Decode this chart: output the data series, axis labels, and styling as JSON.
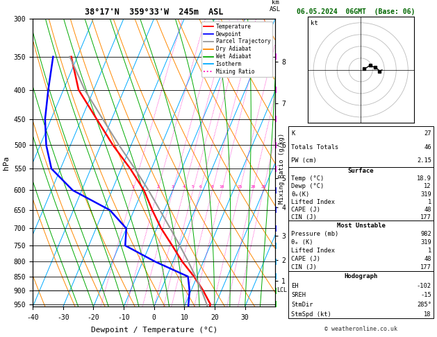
{
  "title_left": "38°17'N  359°33'W  245m  ASL",
  "title_right": "06.05.2024  06GMT  (Base: 06)",
  "xlabel": "Dewpoint / Temperature (°C)",
  "p_min": 300,
  "p_max": 960,
  "xlim": [
    -40,
    40
  ],
  "xticks": [
    -40,
    -30,
    -20,
    -10,
    0,
    10,
    20,
    30
  ],
  "pressure_levels": [
    300,
    350,
    400,
    450,
    500,
    550,
    600,
    650,
    700,
    750,
    800,
    850,
    900,
    950
  ],
  "temp_profile": {
    "temps": [
      18.9,
      18.2,
      14.0,
      9.0,
      3.0,
      -2.5,
      -8.5,
      -14.0,
      -19.5,
      -27.0,
      -36.0,
      -45.0,
      -55.0,
      -62.0
    ],
    "pressures": [
      982,
      950,
      900,
      850,
      800,
      750,
      700,
      650,
      600,
      550,
      500,
      450,
      400,
      350
    ],
    "color": "#ff0000",
    "linewidth": 1.8
  },
  "dewp_profile": {
    "temps": [
      12.0,
      11.0,
      9.5,
      7.0,
      -6.0,
      -18.0,
      -20.0,
      -28.0,
      -43.0,
      -53.0,
      -58.0,
      -62.0,
      -65.0,
      -68.0
    ],
    "pressures": [
      982,
      950,
      900,
      850,
      800,
      750,
      700,
      650,
      600,
      550,
      500,
      450,
      400,
      350
    ],
    "color": "#0000ff",
    "linewidth": 1.8
  },
  "parcel_profile": {
    "temps": [
      18.9,
      17.0,
      13.5,
      9.5,
      5.0,
      0.0,
      -5.5,
      -11.5,
      -18.0,
      -25.5,
      -34.0,
      -43.0,
      -53.0,
      -62.5
    ],
    "pressures": [
      982,
      950,
      900,
      850,
      800,
      750,
      700,
      650,
      600,
      550,
      500,
      450,
      400,
      350
    ],
    "color": "#999999",
    "linewidth": 1.5
  },
  "lcl_pressure": 897,
  "background_color": "#ffffff",
  "isotherm_color": "#00aaff",
  "isotherm_lw": 0.7,
  "isotherm_temps": [
    -60,
    -50,
    -40,
    -30,
    -20,
    -10,
    0,
    10,
    20,
    30,
    40,
    50
  ],
  "dry_adiabat_color": "#ff8800",
  "dry_adiabat_lw": 0.7,
  "dry_adiabat_thetas": [
    220,
    230,
    240,
    250,
    260,
    270,
    280,
    290,
    300,
    310,
    320,
    330,
    340,
    350,
    360,
    370,
    380,
    390,
    400,
    410,
    420
  ],
  "wet_adiabat_color": "#00aa00",
  "wet_adiabat_lw": 0.7,
  "wet_adiabat_T0s": [
    -25,
    -20,
    -15,
    -10,
    -5,
    0,
    5,
    10,
    15,
    20,
    25,
    30,
    35,
    40
  ],
  "mixing_ratio_color": "#ff00bb",
  "mixing_ratio_lw": 0.6,
  "mixing_ratio_values": [
    1,
    2,
    3,
    4,
    5,
    6,
    8,
    10,
    15,
    20,
    25
  ],
  "km_ticks": [
    {
      "pressure": 357,
      "km": 8
    },
    {
      "pressure": 422,
      "km": 7
    },
    {
      "pressure": 500,
      "km": 6
    },
    {
      "pressure": 572,
      "km": 5
    },
    {
      "pressure": 642,
      "km": 4
    },
    {
      "pressure": 721,
      "km": 3
    },
    {
      "pressure": 795,
      "km": 2
    },
    {
      "pressure": 864,
      "km": 1
    }
  ],
  "legend_items": [
    {
      "label": "Temperature",
      "color": "#ff0000",
      "style": "solid"
    },
    {
      "label": "Dewpoint",
      "color": "#0000ff",
      "style": "solid"
    },
    {
      "label": "Parcel Trajectory",
      "color": "#999999",
      "style": "solid"
    },
    {
      "label": "Dry Adiabat",
      "color": "#ff8800",
      "style": "solid"
    },
    {
      "label": "Wet Adiabat",
      "color": "#00aa00",
      "style": "solid"
    },
    {
      "label": "Isotherm",
      "color": "#00aaff",
      "style": "solid"
    },
    {
      "label": "Mixing Ratio",
      "color": "#ff00bb",
      "style": "dotted"
    }
  ],
  "info": {
    "k": 27,
    "totals_totals": 46,
    "pw_cm": "2.15",
    "surface_temp": "18.9",
    "surface_dewp": "12",
    "theta_e_surface": "319",
    "lifted_index_surface": "1",
    "cape_surface": "48",
    "cin_surface": "177",
    "mu_pressure": "982",
    "mu_theta_e": "319",
    "mu_lifted_index": "1",
    "mu_cape": "48",
    "mu_cin": "177",
    "eh": "-102",
    "sreh": "-15",
    "stmdir": "285°",
    "stmspd": "18",
    "copyright": "© weatheronline.co.uk"
  },
  "hodograph": {
    "rings": [
      10,
      20,
      30,
      40
    ],
    "ring_color": "#bbbbbb",
    "wu": [
      3,
      5,
      8,
      10,
      12,
      14,
      16,
      18
    ],
    "wv": [
      1,
      2,
      4,
      3,
      2,
      1,
      -1,
      0
    ],
    "path_color": "#000000"
  },
  "wind_barbs": {
    "pressures": [
      950,
      900,
      850,
      800,
      750,
      700,
      650,
      600,
      550,
      500,
      450,
      400,
      350
    ],
    "u": [
      5,
      8,
      10,
      12,
      15,
      18,
      20,
      22,
      25,
      28,
      30,
      32,
      35
    ],
    "v": [
      2,
      3,
      4,
      5,
      6,
      7,
      8,
      9,
      10,
      11,
      12,
      13,
      14
    ],
    "colors": [
      "#00cc00",
      "#00cc00",
      "#00aaff",
      "#00aaff",
      "#00aaff",
      "#0000ff",
      "#0000ff",
      "#0000ff",
      "#ff00ff",
      "#ff00ff",
      "#ff00ff",
      "#ff00ff",
      "#ff00ff"
    ]
  },
  "skew_factor": 40
}
